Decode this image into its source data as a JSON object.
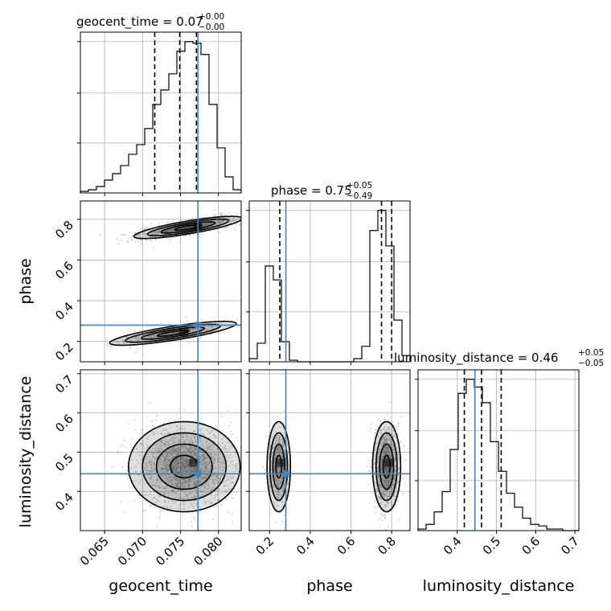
{
  "chart_data": {
    "type": "corner",
    "parameters": [
      {
        "key": "geocent_time",
        "label": "geocent_time",
        "range": [
          0.0618,
          0.083
        ],
        "ticks": [
          0.065,
          0.07,
          0.075,
          0.08
        ],
        "tick_labels": [
          "0.065",
          "0.070",
          "0.075",
          "0.080"
        ]
      },
      {
        "key": "phase",
        "label": "phase",
        "range": [
          0.1,
          0.89
        ],
        "ticks": [
          0.2,
          0.4,
          0.6,
          0.8
        ],
        "tick_labels": [
          "0.2",
          "0.4",
          "0.6",
          "0.8"
        ]
      },
      {
        "key": "luminosity_distance",
        "label": "luminosity_distance",
        "range": [
          0.3,
          0.71
        ],
        "ticks": [
          0.4,
          0.5,
          0.6,
          0.7
        ],
        "tick_labels": [
          "0.4",
          "0.5",
          "0.6",
          "0.7"
        ]
      }
    ],
    "titles": [
      {
        "param": "geocent_time",
        "text": "geocent_time = 0.07",
        "plus": "+0.00",
        "minus": "−0.00"
      },
      {
        "param": "phase",
        "text": "phase = 0.75",
        "plus": "+0.05",
        "minus": "−0.49"
      },
      {
        "param": "luminosity_distance",
        "text": "luminosity_distance = 0.46",
        "plus": "+0.05",
        "minus": "−0.05"
      }
    ],
    "truths": {
      "geocent_time": 0.0773,
      "phase": 0.28,
      "luminosity_distance": 0.445
    },
    "quantiles": {
      "geocent_time": [
        0.0716,
        0.0749,
        0.0771
      ],
      "phase": [
        0.25,
        0.75,
        0.8
      ],
      "luminosity_distance": [
        0.418,
        0.462,
        0.512
      ]
    },
    "histograms": {
      "geocent_time": {
        "edges_start": 0.0618,
        "bin_width": 0.00106,
        "counts": [
          1,
          2,
          4,
          8,
          12,
          17,
          24,
          30,
          40,
          55,
          64,
          74,
          88,
          94,
          93,
          86,
          55,
          28,
          10,
          2
        ]
      },
      "phase": {
        "edges_start": 0.1,
        "bin_width": 0.0395,
        "counts": [
          2,
          12,
          62,
          53,
          13,
          1,
          0,
          0,
          0,
          0,
          0,
          0,
          0,
          2,
          10,
          85,
          98,
          75,
          27,
          4
        ]
      },
      "luminosity_distance": {
        "edges_start": 0.3,
        "bin_width": 0.0205,
        "counts": [
          1,
          4,
          12,
          25,
          52,
          88,
          97,
          92,
          82,
          57,
          38,
          24,
          15,
          8,
          4,
          3,
          1,
          1,
          0,
          0
        ]
      }
    },
    "pairs": [
      {
        "x": "geocent_time",
        "y": "phase",
        "modes": [
          {
            "mx": 0.076,
            "my": 0.76,
            "sx": 0.003,
            "sy": 0.025,
            "rho": 0.75,
            "weight": 0.75
          },
          {
            "mx": 0.074,
            "my": 0.24,
            "sx": 0.0035,
            "sy": 0.027,
            "rho": 0.75,
            "weight": 0.25
          }
        ]
      },
      {
        "x": "geocent_time",
        "y": "luminosity_distance",
        "modes": [
          {
            "mx": 0.0755,
            "my": 0.463,
            "sx": 0.0032,
            "sy": 0.05,
            "rho": 0.0,
            "weight": 1.0
          }
        ]
      },
      {
        "x": "phase",
        "y": "luminosity_distance",
        "modes": [
          {
            "mx": 0.775,
            "my": 0.463,
            "sx": 0.03,
            "sy": 0.05,
            "rho": 0.0,
            "weight": 0.75
          },
          {
            "mx": 0.245,
            "my": 0.463,
            "sx": 0.025,
            "sy": 0.05,
            "rho": 0.0,
            "weight": 0.25
          }
        ]
      }
    ],
    "contour_levels_sigma": [
      0.5,
      1.0,
      1.5,
      2.0
    ],
    "grid": true,
    "truth_color": "#4682b4",
    "hist_color": "#000000",
    "point_color": "#999999"
  }
}
